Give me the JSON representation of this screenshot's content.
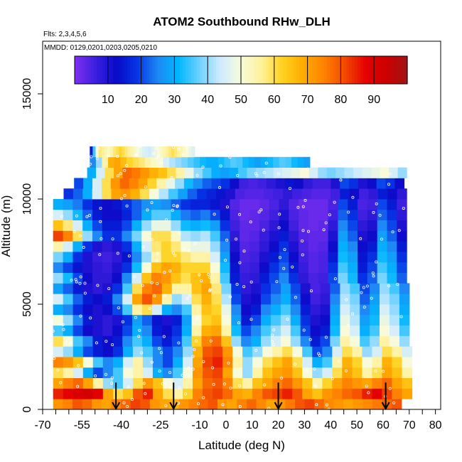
{
  "chart_data": {
    "type": "heatmap",
    "title": "ATOM2 Southbound RHw_DLH",
    "flights_label": "Flts: 2,3,4,5,6",
    "dates_label": "MMDD: 0129,0201,0203,0205,0210",
    "xlabel": "Latitude (deg N)",
    "ylabel": "Altitude (m)",
    "xlim": [
      -70,
      82
    ],
    "ylim": [
      0,
      17500
    ],
    "x_ticks": [
      -70,
      -55,
      -40,
      -25,
      -10,
      0,
      10,
      20,
      30,
      40,
      50,
      60,
      70,
      80
    ],
    "y_ticks": [
      0,
      5000,
      10000,
      15000
    ],
    "colorbar": {
      "range": [
        0,
        100
      ],
      "ticks": [
        10,
        20,
        30,
        40,
        50,
        60,
        70,
        80,
        90
      ],
      "colors": [
        "#7f2ff0",
        "#3c1fe0",
        "#0a0ac8",
        "#0535e6",
        "#1e88f4",
        "#00b7ff",
        "#6fd1ff",
        "#cdebff",
        "#f8fbd9",
        "#fff199",
        "#ffd21f",
        "#ffab00",
        "#ff8200",
        "#f24a00",
        "#e50000",
        "#cc0000",
        "#a01515"
      ]
    },
    "arrow_latitudes": [
      -42,
      -20,
      20,
      61
    ],
    "grid": false,
    "legend": "colorbar top",
    "layers": [
      {
        "alt": 250,
        "lat_min": -66,
        "lat_max": 67,
        "values": [
          72,
          75,
          80,
          78,
          72,
          70,
          75,
          78,
          82,
          80,
          72,
          70,
          68,
          72,
          75,
          78,
          80,
          72,
          70,
          75,
          78,
          74,
          70,
          72,
          76,
          80,
          82,
          78,
          74,
          72,
          70,
          72,
          74,
          76,
          78,
          80
        ]
      },
      {
        "alt": 750,
        "lat_min": -66,
        "lat_max": 71,
        "values": [
          85,
          88,
          90,
          92,
          88,
          70,
          60,
          65,
          80,
          85,
          70,
          60,
          55,
          62,
          75,
          80,
          82,
          78,
          70,
          68,
          75,
          80,
          82,
          85,
          80,
          70,
          65,
          72,
          75,
          78,
          80,
          85,
          88,
          82,
          75,
          70
        ]
      },
      {
        "alt": 1250,
        "lat_min": -66,
        "lat_max": 71,
        "values": [
          70,
          75,
          78,
          70,
          55,
          40,
          35,
          45,
          60,
          72,
          65,
          50,
          45,
          55,
          70,
          78,
          80,
          75,
          60,
          55,
          65,
          70,
          75,
          78,
          72,
          65,
          55,
          62,
          70,
          75,
          72,
          70,
          75,
          78,
          70,
          65
        ]
      },
      {
        "alt": 1750,
        "lat_min": -66,
        "lat_max": 71,
        "values": [
          60,
          55,
          45,
          30,
          20,
          25,
          35,
          50,
          55,
          45,
          30,
          25,
          35,
          50,
          72,
          80,
          82,
          70,
          50,
          40,
          55,
          65,
          70,
          72,
          65,
          50,
          40,
          45,
          60,
          70,
          65,
          55,
          60,
          70,
          65,
          55
        ]
      },
      {
        "alt": 2250,
        "lat_min": -66,
        "lat_max": 71,
        "values": [
          75,
          72,
          65,
          50,
          35,
          25,
          30,
          45,
          55,
          40,
          25,
          20,
          30,
          45,
          70,
          82,
          85,
          75,
          55,
          40,
          50,
          60,
          65,
          70,
          60,
          45,
          30,
          35,
          55,
          68,
          62,
          50,
          55,
          68,
          62,
          50
        ]
      },
      {
        "alt": 2750,
        "lat_min": -66,
        "lat_max": 71,
        "values": [
          45,
          40,
          30,
          20,
          15,
          12,
          18,
          30,
          40,
          35,
          25,
          20,
          25,
          40,
          68,
          80,
          82,
          72,
          50,
          35,
          40,
          50,
          55,
          60,
          50,
          35,
          20,
          25,
          45,
          60,
          55,
          40,
          45,
          60,
          55,
          45
        ]
      },
      {
        "alt": 3250,
        "lat_min": -66,
        "lat_max": 70,
        "values": [
          60,
          50,
          35,
          25,
          15,
          12,
          15,
          25,
          35,
          30,
          20,
          15,
          20,
          35,
          62,
          75,
          78,
          65,
          40,
          25,
          30,
          40,
          45,
          50,
          40,
          25,
          15,
          20,
          38,
          55,
          50,
          35,
          40,
          55,
          50,
          40
        ]
      },
      {
        "alt": 3750,
        "lat_min": -66,
        "lat_max": 70,
        "values": [
          35,
          30,
          20,
          12,
          10,
          8,
          12,
          20,
          30,
          25,
          15,
          12,
          18,
          30,
          55,
          68,
          70,
          55,
          32,
          20,
          25,
          35,
          40,
          45,
          35,
          20,
          12,
          15,
          32,
          50,
          45,
          30,
          35,
          50,
          45,
          35
        ]
      },
      {
        "alt": 4250,
        "lat_min": -66,
        "lat_max": 70,
        "values": [
          50,
          40,
          25,
          15,
          10,
          8,
          10,
          18,
          28,
          22,
          14,
          10,
          15,
          28,
          50,
          62,
          65,
          50,
          28,
          15,
          20,
          30,
          35,
          40,
          30,
          18,
          10,
          12,
          30,
          48,
          42,
          28,
          32,
          48,
          42,
          32
        ]
      },
      {
        "alt": 4750,
        "lat_min": -66,
        "lat_max": 70,
        "values": [
          30,
          25,
          18,
          12,
          10,
          12,
          20,
          35,
          55,
          60,
          45,
          30,
          25,
          35,
          55,
          65,
          62,
          48,
          25,
          12,
          15,
          25,
          30,
          35,
          25,
          15,
          8,
          10,
          28,
          45,
          40,
          25,
          30,
          45,
          40,
          30
        ]
      },
      {
        "alt": 5250,
        "lat_min": -66,
        "lat_max": 70,
        "values": [
          45,
          35,
          22,
          15,
          12,
          15,
          25,
          45,
          70,
          80,
          72,
          55,
          40,
          45,
          60,
          68,
          60,
          42,
          20,
          10,
          12,
          20,
          25,
          30,
          22,
          12,
          6,
          8,
          25,
          42,
          38,
          22,
          28,
          42,
          38,
          28
        ]
      },
      {
        "alt": 5750,
        "lat_min": -66,
        "lat_max": 70,
        "values": [
          28,
          22,
          15,
          10,
          8,
          10,
          18,
          35,
          60,
          75,
          78,
          68,
          55,
          55,
          65,
          70,
          58,
          38,
          18,
          8,
          10,
          18,
          22,
          28,
          20,
          10,
          5,
          7,
          22,
          40,
          35,
          20,
          25,
          40,
          35,
          25
        ]
      },
      {
        "alt": 6250,
        "lat_min": -66,
        "lat_max": 69,
        "values": [
          40,
          32,
          20,
          12,
          8,
          8,
          12,
          25,
          45,
          65,
          75,
          72,
          65,
          60,
          65,
          68,
          55,
          35,
          15,
          7,
          8,
          15,
          20,
          25,
          18,
          8,
          5,
          6,
          20,
          38,
          32,
          18,
          22,
          38,
          32,
          22
        ]
      },
      {
        "alt": 6750,
        "lat_min": -66,
        "lat_max": 69,
        "values": [
          25,
          20,
          14,
          10,
          8,
          7,
          10,
          18,
          32,
          50,
          65,
          70,
          68,
          62,
          62,
          62,
          50,
          32,
          14,
          6,
          7,
          12,
          18,
          22,
          15,
          7,
          4,
          5,
          18,
          35,
          30,
          15,
          20,
          35,
          30,
          20
        ]
      },
      {
        "alt": 7250,
        "lat_min": -66,
        "lat_max": 69,
        "values": [
          38,
          30,
          18,
          10,
          7,
          6,
          8,
          14,
          25,
          40,
          55,
          62,
          62,
          58,
          55,
          55,
          45,
          28,
          12,
          5,
          6,
          10,
          15,
          20,
          12,
          6,
          4,
          5,
          15,
          32,
          28,
          14,
          18,
          32,
          28,
          18
        ]
      },
      {
        "alt": 7750,
        "lat_min": -66,
        "lat_max": 69,
        "values": [
          55,
          45,
          30,
          18,
          10,
          8,
          10,
          18,
          30,
          45,
          58,
          62,
          58,
          50,
          48,
          48,
          40,
          25,
          10,
          4,
          5,
          8,
          12,
          18,
          10,
          5,
          3,
          4,
          12,
          30,
          25,
          12,
          15,
          30,
          25,
          15
        ]
      },
      {
        "alt": 8250,
        "lat_min": -66,
        "lat_max": 69,
        "values": [
          82,
          75,
          60,
          40,
          25,
          18,
          18,
          25,
          38,
          50,
          60,
          60,
          52,
          42,
          40,
          42,
          35,
          22,
          8,
          3,
          4,
          7,
          10,
          15,
          8,
          4,
          3,
          3,
          10,
          28,
          22,
          10,
          12,
          28,
          22,
          12
        ]
      },
      {
        "alt": 8750,
        "lat_min": -66,
        "lat_max": 69,
        "values": [
          65,
          58,
          45,
          30,
          20,
          15,
          15,
          20,
          30,
          40,
          48,
          48,
          40,
          32,
          30,
          32,
          28,
          18,
          6,
          3,
          3,
          5,
          8,
          12,
          6,
          3,
          2,
          3,
          8,
          25,
          20,
          8,
          10,
          25,
          20,
          10
        ]
      },
      {
        "alt": 9250,
        "lat_min": -66,
        "lat_max": 69,
        "values": [
          45,
          40,
          32,
          22,
          15,
          12,
          12,
          16,
          22,
          30,
          36,
          36,
          30,
          24,
          22,
          24,
          20,
          14,
          5,
          2,
          3,
          4,
          6,
          10,
          5,
          3,
          2,
          2,
          6,
          22,
          18,
          6,
          8,
          22,
          18,
          8
        ]
      },
      {
        "alt": 9750,
        "lat_min": -66,
        "lat_max": 69,
        "values": [
          30,
          28,
          24,
          18,
          14,
          12,
          14,
          18,
          22,
          26,
          28,
          26,
          22,
          18,
          16,
          16,
          14,
          10,
          4,
          2,
          2,
          3,
          5,
          8,
          4,
          2,
          2,
          2,
          5,
          20,
          15,
          5,
          6,
          20,
          15,
          6
        ]
      },
      {
        "alt": 10250,
        "lat_min": -62,
        "lat_max": 69,
        "values": [
          18,
          22,
          30,
          45,
          60,
          70,
          72,
          68,
          60,
          50,
          42,
          35,
          28,
          22,
          18,
          16,
          14,
          10,
          5,
          4,
          4,
          5,
          6,
          8,
          6,
          5,
          4,
          4,
          6,
          15,
          12,
          6,
          8,
          15,
          12,
          8
        ]
      },
      {
        "alt": 10750,
        "lat_min": -58,
        "lat_max": 68,
        "values": [
          20,
          30,
          45,
          60,
          72,
          78,
          75,
          70,
          62,
          55,
          48,
          40,
          32,
          26,
          22,
          20,
          18,
          12,
          6,
          5,
          6,
          8,
          10,
          14,
          12,
          8,
          6,
          6,
          10,
          20,
          18,
          10,
          12,
          20,
          18,
          12
        ]
      },
      {
        "alt": 11250,
        "lat_min": -53,
        "lat_max": 69,
        "values": [
          30,
          45,
          60,
          70,
          78,
          76,
          72,
          68,
          65,
          60,
          55,
          48,
          40,
          35,
          30,
          28,
          30,
          35,
          38,
          40,
          42,
          44,
          46,
          48,
          50,
          45,
          40,
          38,
          40,
          42,
          44,
          46,
          48,
          50,
          45,
          40
        ]
      },
      {
        "alt": 11750,
        "lat_min": -52,
        "lat_max": 32,
        "values": [
          25,
          40,
          55,
          68,
          70,
          66,
          62,
          60,
          58,
          55,
          52,
          50,
          45,
          42,
          40,
          38,
          36,
          34,
          32,
          30,
          30,
          32,
          34,
          36,
          35,
          32,
          30,
          28,
          30,
          32,
          34,
          36,
          35,
          32,
          30,
          28
        ]
      },
      {
        "alt": 12250,
        "lat_min": -52,
        "lat_max": -12,
        "values": [
          15,
          35,
          50,
          58,
          56,
          54,
          52,
          55,
          58,
          60,
          62,
          60,
          58,
          56,
          54,
          52,
          50,
          48,
          46,
          45,
          44,
          46,
          48,
          50,
          52,
          54,
          56,
          58,
          60,
          58,
          56,
          54,
          52,
          50,
          48,
          46
        ]
      }
    ]
  }
}
